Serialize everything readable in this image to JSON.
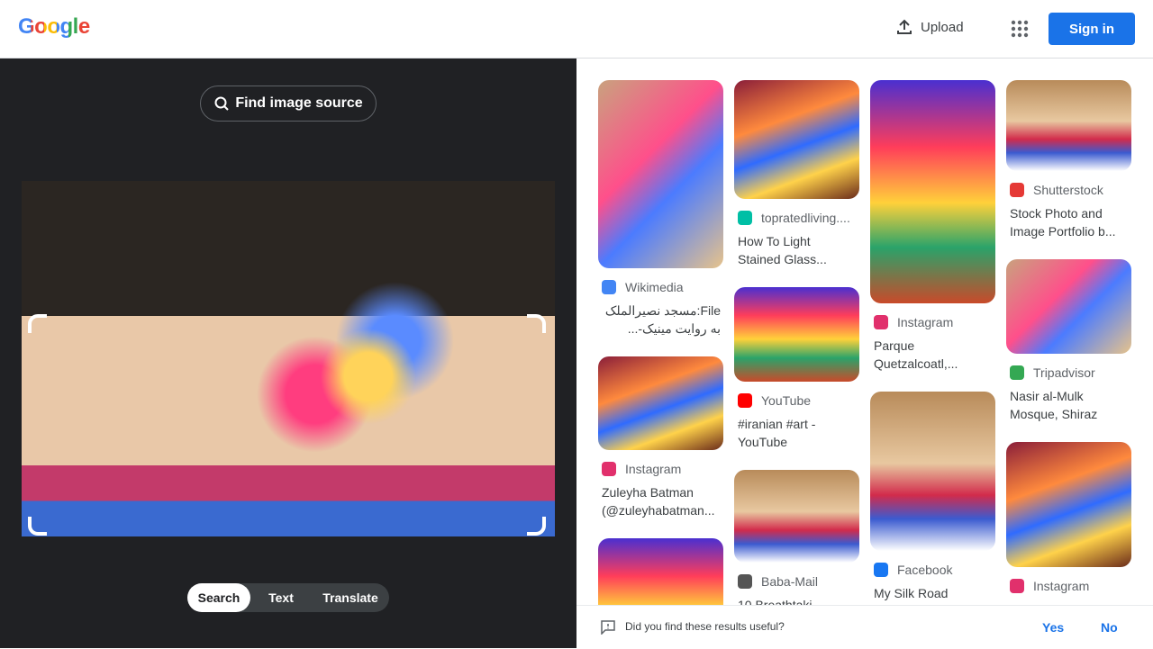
{
  "header": {
    "logo": "Google",
    "upload": "Upload",
    "sign_in": "Sign in"
  },
  "left": {
    "find_source": "Find image source",
    "tabs": [
      "Search",
      "Text",
      "Translate"
    ]
  },
  "results": {
    "columns": [
      [
        {
          "source": "Wikimedia",
          "title": "File:مسجد نصیرالملک به روایت مینیک-..."
        },
        {
          "source": "Instagram",
          "title": "Zuleyha Batman (@zuleyhabatman..."
        },
        {
          "source": "",
          "title": ""
        }
      ],
      [
        {
          "source": "topratedliving....",
          "title": "How To Light Stained Glass..."
        },
        {
          "source": "YouTube",
          "title": "#iranian #art - YouTube"
        },
        {
          "source": "Baba-Mail",
          "title": "10 Breathtaki"
        }
      ],
      [
        {
          "source": "Instagram",
          "title": "Parque Quetzalcoatl,..."
        },
        {
          "source": "Facebook",
          "title": "My Silk Road"
        }
      ],
      [
        {
          "source": "Shutterstock",
          "title": "Stock Photo and Image Portfolio b..."
        },
        {
          "source": "Tripadvisor",
          "title": "Nasir al-Mulk Mosque, Shiraz"
        },
        {
          "source": "Instagram",
          "title": ""
        }
      ]
    ]
  },
  "feedback": {
    "question": "Did you find these results useful?",
    "yes": "Yes",
    "no": "No"
  }
}
